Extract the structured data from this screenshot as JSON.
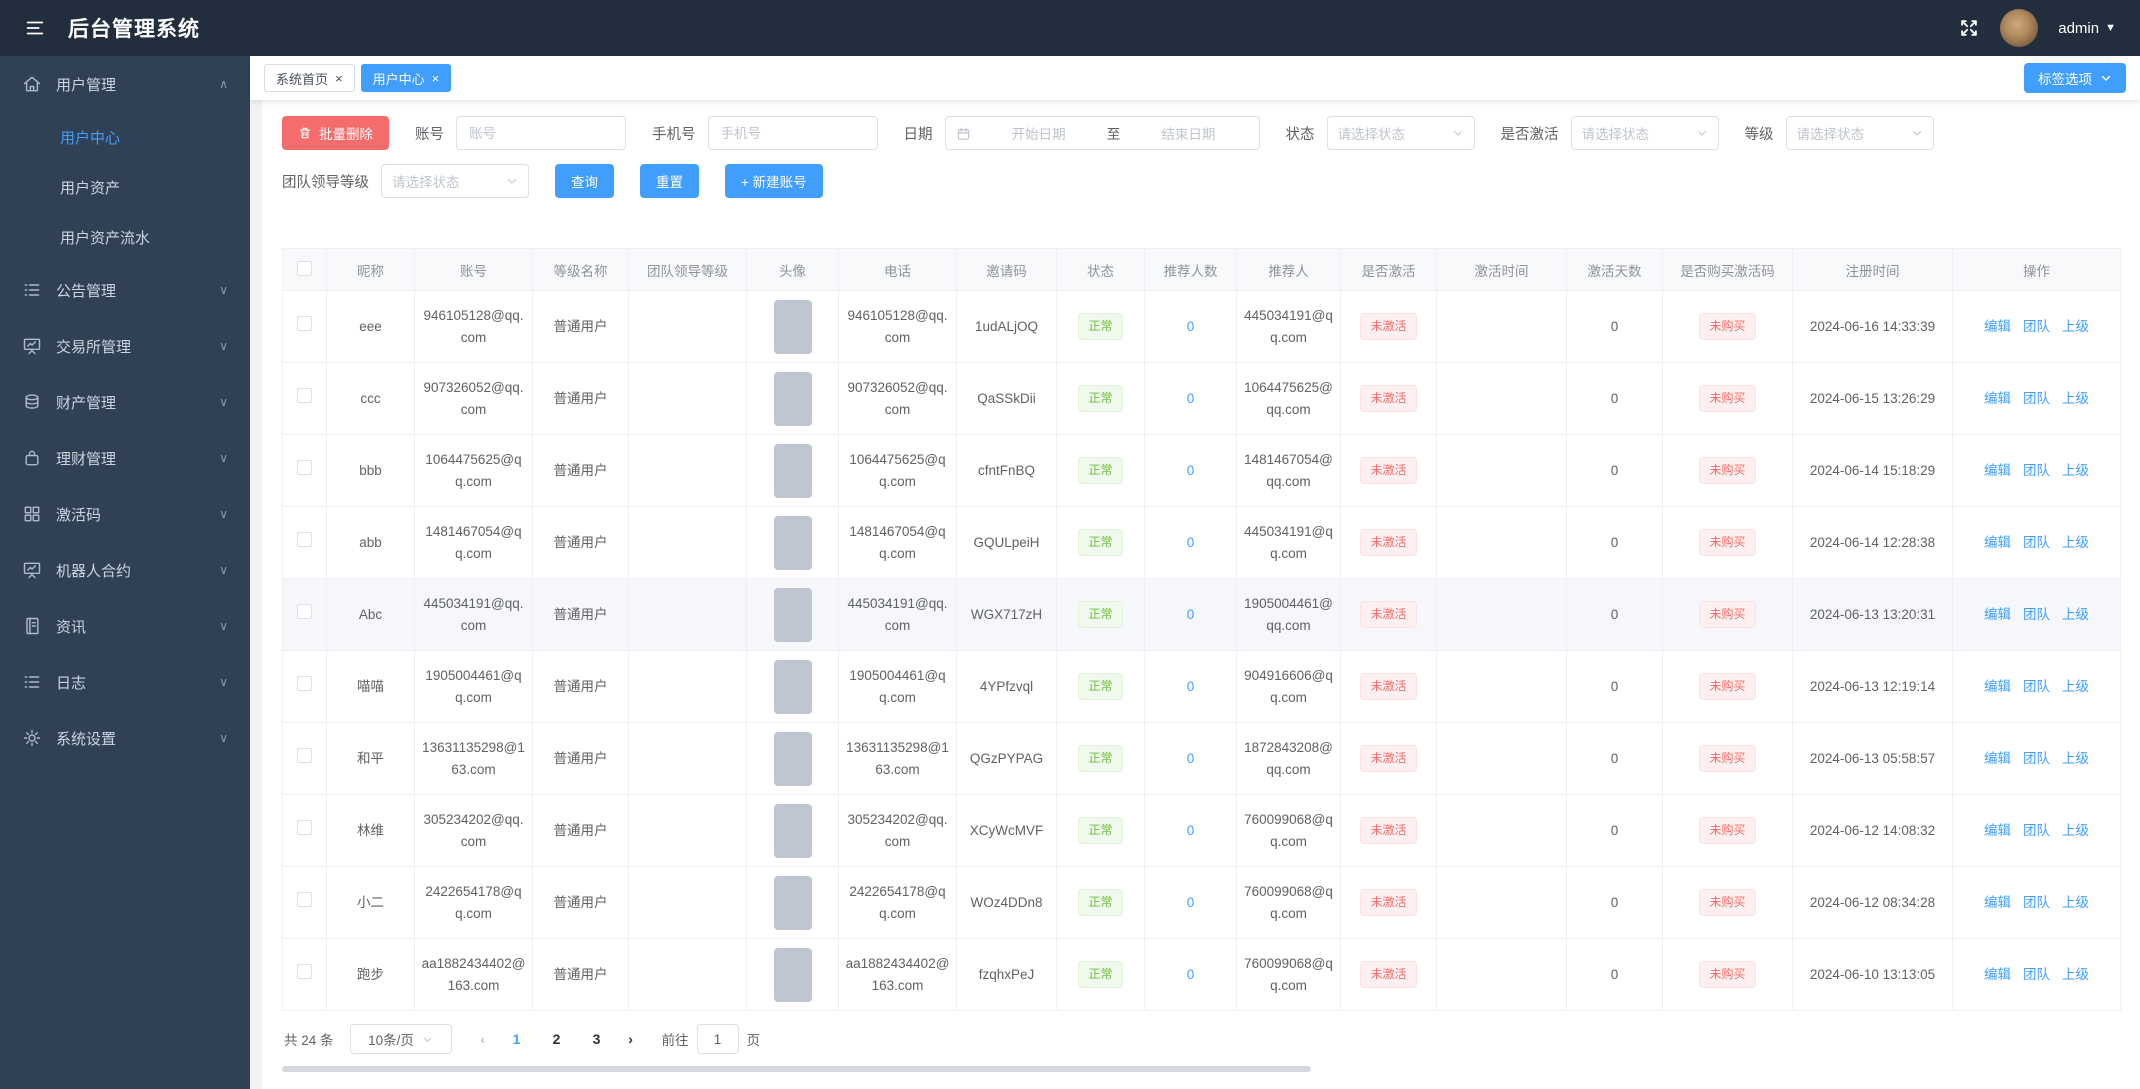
{
  "app": {
    "title": "后台管理系统",
    "user": "admin"
  },
  "sidebar": {
    "items": [
      {
        "label": "用户管理",
        "icon": "home-icon",
        "expanded": true,
        "children": [
          {
            "label": "用户中心",
            "active": true
          },
          {
            "label": "用户资产",
            "active": false
          },
          {
            "label": "用户资产流水",
            "active": false
          }
        ]
      },
      {
        "label": "公告管理",
        "icon": "list-icon"
      },
      {
        "label": "交易所管理",
        "icon": "presentation-icon"
      },
      {
        "label": "财产管理",
        "icon": "coins-icon"
      },
      {
        "label": "理财管理",
        "icon": "briefcase-icon"
      },
      {
        "label": "激活码",
        "icon": "grid-icon"
      },
      {
        "label": "机器人合约",
        "icon": "presentation-icon"
      },
      {
        "label": "资讯",
        "icon": "document-icon"
      },
      {
        "label": "日志",
        "icon": "list-icon"
      },
      {
        "label": "系统设置",
        "icon": "gear-icon"
      }
    ]
  },
  "tabs": [
    {
      "label": "系统首页",
      "close": "×",
      "active": false
    },
    {
      "label": "用户中心",
      "close": "×",
      "active": true
    }
  ],
  "tag_options": {
    "label": "标签选项"
  },
  "filters": {
    "batch_delete_label": "批量删除",
    "account_label": "账号",
    "account_placeholder": "账号",
    "phone_label": "手机号",
    "phone_placeholder": "手机号",
    "date_label": "日期",
    "date_start_placeholder": "开始日期",
    "date_to": "至",
    "date_end_placeholder": "结束日期",
    "status_label": "状态",
    "active_label": "是否激活",
    "level_label": "等级",
    "team_leader_label": "团队领导等级",
    "select_placeholder": "请选择状态",
    "search_label": "查询",
    "reset_label": "重置",
    "new_account_label": "+ 新建账号"
  },
  "table": {
    "headers": [
      "昵称",
      "账号",
      "等级名称",
      "团队领导等级",
      "头像",
      "电话",
      "邀请码",
      "状态",
      "推荐人数",
      "推荐人",
      "是否激活",
      "激活时间",
      "激活天数",
      "是否购买激活码",
      "注册时间",
      "操作"
    ],
    "action_labels": [
      "编辑",
      "团队",
      "上级"
    ],
    "rows": [
      {
        "nickname": "eee",
        "account": "946105128@qq.com",
        "level": "普通用户",
        "team_level": "",
        "phone": "946105128@qq.com",
        "invite_code": "1udALjOQ",
        "status": "正常",
        "referral_count": "0",
        "referrer": "445034191@qq.com",
        "activated": "未激活",
        "activation_time": "",
        "activation_days": "0",
        "purchased": "未购买",
        "registered": "2024-06-16 14:33:39",
        "highlighted": false
      },
      {
        "nickname": "ccc",
        "account": "907326052@qq.com",
        "level": "普通用户",
        "team_level": "",
        "phone": "907326052@qq.com",
        "invite_code": "QaSSkDii",
        "status": "正常",
        "referral_count": "0",
        "referrer": "1064475625@qq.com",
        "activated": "未激活",
        "activation_time": "",
        "activation_days": "0",
        "purchased": "未购买",
        "registered": "2024-06-15 13:26:29",
        "highlighted": false
      },
      {
        "nickname": "bbb",
        "account": "1064475625@qq.com",
        "level": "普通用户",
        "team_level": "",
        "phone": "1064475625@qq.com",
        "invite_code": "cfntFnBQ",
        "status": "正常",
        "referral_count": "0",
        "referrer": "1481467054@qq.com",
        "activated": "未激活",
        "activation_time": "",
        "activation_days": "0",
        "purchased": "未购买",
        "registered": "2024-06-14 15:18:29",
        "highlighted": false
      },
      {
        "nickname": "abb",
        "account": "1481467054@qq.com",
        "level": "普通用户",
        "team_level": "",
        "phone": "1481467054@qq.com",
        "invite_code": "GQULpeiH",
        "status": "正常",
        "referral_count": "0",
        "referrer": "445034191@qq.com",
        "activated": "未激活",
        "activation_time": "",
        "activation_days": "0",
        "purchased": "未购买",
        "registered": "2024-06-14 12:28:38",
        "highlighted": false
      },
      {
        "nickname": "Abc",
        "account": "445034191@qq.com",
        "level": "普通用户",
        "team_level": "",
        "phone": "445034191@qq.com",
        "invite_code": "WGX717zH",
        "status": "正常",
        "referral_count": "0",
        "referrer": "1905004461@qq.com",
        "activated": "未激活",
        "activation_time": "",
        "activation_days": "0",
        "purchased": "未购买",
        "registered": "2024-06-13 13:20:31",
        "highlighted": true
      },
      {
        "nickname": "喵喵",
        "account": "1905004461@qq.com",
        "level": "普通用户",
        "team_level": "",
        "phone": "1905004461@qq.com",
        "invite_code": "4YPfzvql",
        "status": "正常",
        "referral_count": "0",
        "referrer": "904916606@qq.com",
        "activated": "未激活",
        "activation_time": "",
        "activation_days": "0",
        "purchased": "未购买",
        "registered": "2024-06-13 12:19:14",
        "highlighted": false
      },
      {
        "nickname": "和平",
        "account": "13631135298@163.com",
        "level": "普通用户",
        "team_level": "",
        "phone": "13631135298@163.com",
        "invite_code": "QGzPYPAG",
        "status": "正常",
        "referral_count": "0",
        "referrer": "1872843208@qq.com",
        "activated": "未激活",
        "activation_time": "",
        "activation_days": "0",
        "purchased": "未购买",
        "registered": "2024-06-13 05:58:57",
        "highlighted": false
      },
      {
        "nickname": "林维",
        "account": "305234202@qq.com",
        "level": "普通用户",
        "team_level": "",
        "phone": "305234202@qq.com",
        "invite_code": "XCyWcMVF",
        "status": "正常",
        "referral_count": "0",
        "referrer": "760099068@qq.com",
        "activated": "未激活",
        "activation_time": "",
        "activation_days": "0",
        "purchased": "未购买",
        "registered": "2024-06-12 14:08:32",
        "highlighted": false
      },
      {
        "nickname": "小二",
        "account": "2422654178@qq.com",
        "level": "普通用户",
        "team_level": "",
        "phone": "2422654178@qq.com",
        "invite_code": "WOz4DDn8",
        "status": "正常",
        "referral_count": "0",
        "referrer": "760099068@qq.com",
        "activated": "未激活",
        "activation_time": "",
        "activation_days": "0",
        "purchased": "未购买",
        "registered": "2024-06-12 08:34:28",
        "highlighted": false
      },
      {
        "nickname": "跑步",
        "account": "aa1882434402@163.com",
        "level": "普通用户",
        "team_level": "",
        "phone": "aa1882434402@163.com",
        "invite_code": "fzqhxPeJ",
        "status": "正常",
        "referral_count": "0",
        "referrer": "760099068@qq.com",
        "activated": "未激活",
        "activation_time": "",
        "activation_days": "0",
        "purchased": "未购买",
        "registered": "2024-06-10 13:13:05",
        "highlighted": false
      }
    ]
  },
  "pagination": {
    "total_label": "共 24 条",
    "page_size_label": "10条/页",
    "prev": "‹",
    "next": "›",
    "pages": [
      "1",
      "2",
      "3"
    ],
    "active_page": "1",
    "goto_label": "前往",
    "goto_value": "1",
    "page_suffix": "页"
  },
  "colors": {
    "accent_blue": "#409eff",
    "danger_red": "#f56c6c",
    "status_green": "#67c23a",
    "topbar_bg": "#222d3d",
    "sidebar_bg": "#304156"
  }
}
